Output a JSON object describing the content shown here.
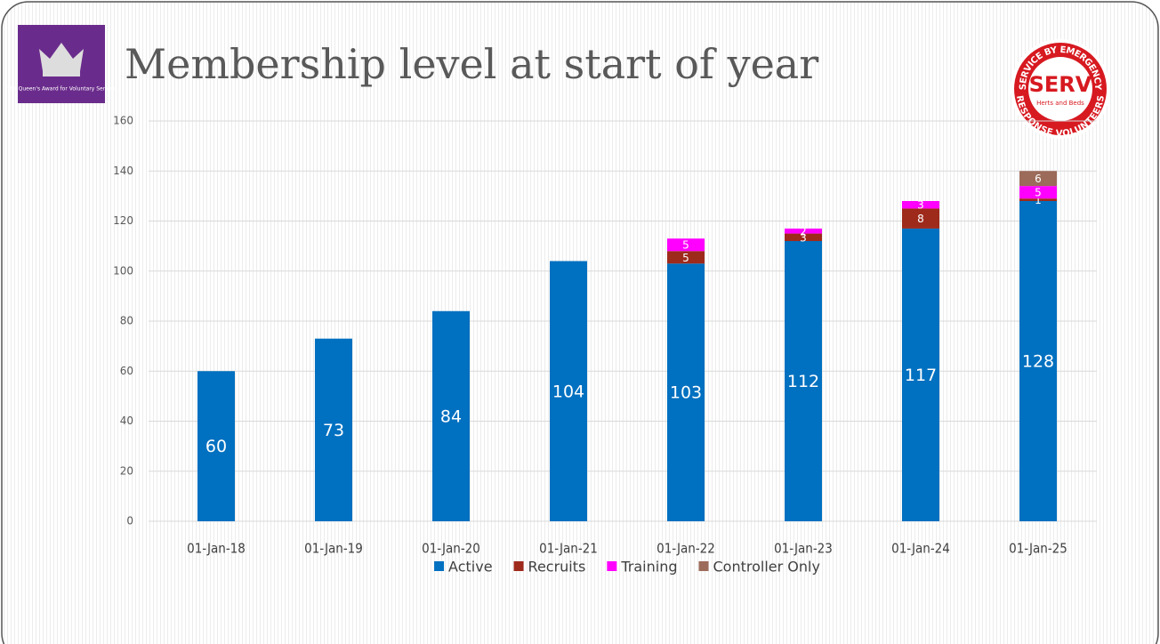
{
  "chart_data": {
    "type": "stacked_bar",
    "title": "Membership level at start of year",
    "categories": [
      "01-Jan-18",
      "01-Jan-19",
      "01-Jan-20",
      "01-Jan-21",
      "01-Jan-22",
      "01-Jan-23",
      "01-Jan-24",
      "01-Jan-25"
    ],
    "series": [
      {
        "name": "Active",
        "color": "#0070c0",
        "values": [
          60,
          73,
          84,
          104,
          103,
          112,
          117,
          128
        ]
      },
      {
        "name": "Recruits",
        "color": "#9e2a1c",
        "values": [
          null,
          null,
          null,
          null,
          5,
          3,
          8,
          1
        ]
      },
      {
        "name": "Training",
        "color": "#ff00ff",
        "values": [
          null,
          null,
          null,
          null,
          5,
          2,
          3,
          5
        ]
      },
      {
        "name": "Controller Only",
        "color": "#9c6b5a",
        "values": [
          null,
          null,
          null,
          null,
          null,
          null,
          null,
          6
        ]
      }
    ],
    "ylim": [
      0,
      160
    ],
    "yticks": [
      0,
      20,
      40,
      60,
      80,
      100,
      120,
      140,
      160
    ],
    "grid": true,
    "legend": "bottom",
    "logos": {
      "award": "The Queen's Award for Voluntary Service",
      "serv_top": "SERVICE BY EMERGENCY",
      "serv_bottom": "RESPONSE VOLUNTEERS",
      "serv_name": "SERV",
      "serv_area": "Herts and Beds"
    }
  }
}
